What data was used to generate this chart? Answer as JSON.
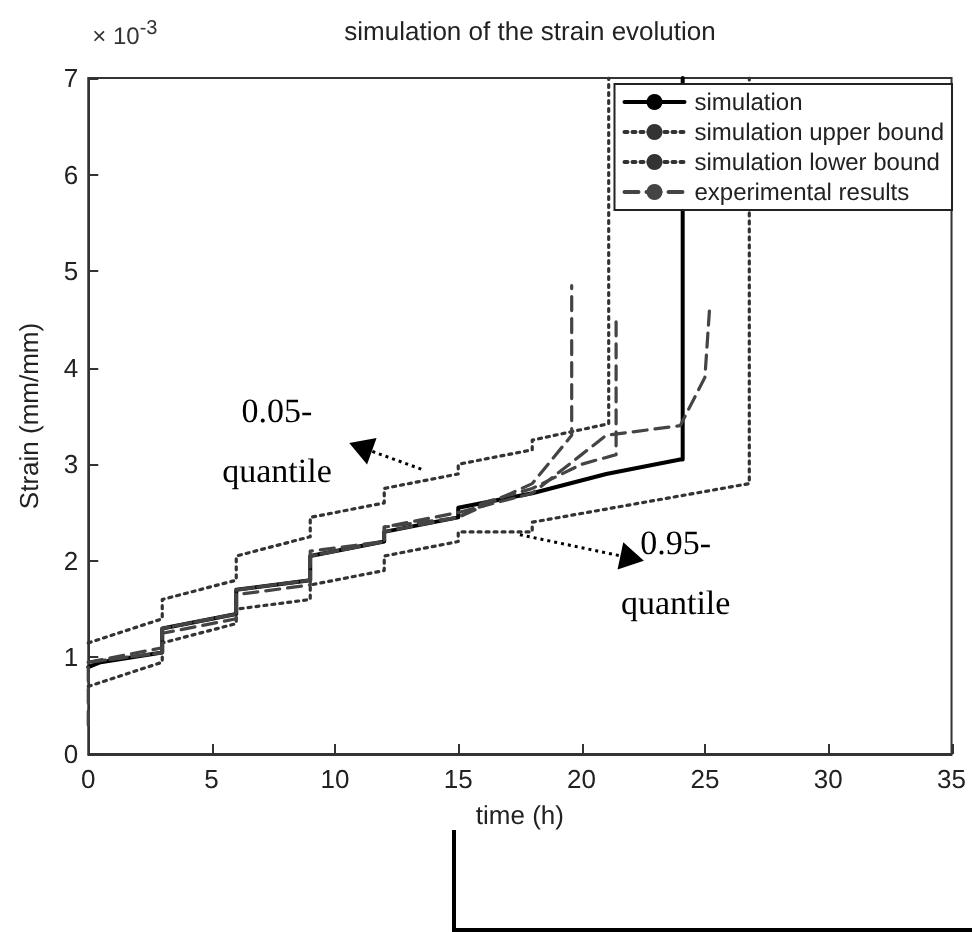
{
  "chart_data": {
    "type": "line",
    "title": "simulation of the strain evolution",
    "xlabel": "time (h)",
    "ylabel": "Strain (mm/mm)",
    "annotations": [
      "× 10$^{-3}$",
      {
        "text": "0.05-\nquantile",
        "x": 13.5,
        "y": 2.95
      },
      {
        "text": "0.95-\nquantile",
        "x": 17.5,
        "y": 2.27
      }
    ],
    "xlim": [
      0,
      35
    ],
    "ylim": [
      0,
      7
    ],
    "xticks": [
      0,
      5,
      10,
      15,
      20,
      25,
      30,
      35
    ],
    "yticks": [
      0,
      1,
      2,
      3,
      4,
      5,
      6,
      7
    ],
    "grid": false,
    "legend": "top right",
    "series": [
      {
        "name": "simulation",
        "color": "#000000",
        "line_style": "solid",
        "x": [
          0,
          0.5,
          3,
          3,
          6,
          6,
          9,
          9,
          12,
          12,
          15,
          15,
          18,
          21,
          24,
          24.1,
          24.1
        ],
        "values": [
          0.9,
          0.95,
          1.05,
          1.3,
          1.45,
          1.7,
          1.8,
          2.05,
          2.2,
          2.3,
          2.45,
          2.55,
          2.7,
          2.9,
          3.05,
          3.05,
          7
        ]
      },
      {
        "name": "simulation upper bound",
        "color": "#333333",
        "line_style": "dotted",
        "x": [
          0,
          3,
          3,
          6,
          6,
          9,
          9,
          12,
          12,
          15,
          15,
          18,
          18,
          21.1,
          21.1
        ],
        "values": [
          1.15,
          1.4,
          1.6,
          1.8,
          2.05,
          2.25,
          2.45,
          2.6,
          2.75,
          2.9,
          3.0,
          3.15,
          3.25,
          3.42,
          7
        ]
      },
      {
        "name": "simulation lower bound",
        "color": "#333333",
        "line_style": "dotted",
        "x": [
          0,
          3,
          3,
          6,
          6,
          9,
          9,
          12,
          12,
          15,
          15,
          18,
          18,
          26.8,
          26.8
        ],
        "values": [
          0.7,
          0.95,
          1.15,
          1.35,
          1.5,
          1.6,
          1.75,
          1.9,
          2.05,
          2.2,
          2.3,
          2.3,
          2.4,
          2.8,
          7
        ]
      },
      {
        "name": "experimental results",
        "color": "#444444",
        "line_style": "dashed",
        "x": [
          0,
          3,
          3,
          6,
          6,
          9,
          9,
          12,
          12,
          15,
          18,
          19.6,
          19.6
        ],
        "values": [
          0.95,
          1.05,
          1.3,
          1.45,
          1.7,
          1.8,
          2.05,
          2.2,
          2.3,
          2.45,
          2.8,
          3.3,
          4.85
        ]
      },
      {
        "color": "#444444",
        "line_style": "dashed",
        "x": [
          0,
          0,
          3,
          3,
          6,
          6,
          9,
          9,
          12,
          12,
          15,
          16,
          18,
          20,
          21.4,
          21.4
        ],
        "values": [
          0.3,
          0.95,
          1.05,
          1.25,
          1.4,
          1.65,
          1.75,
          2.05,
          2.2,
          2.35,
          2.45,
          2.6,
          2.75,
          3.0,
          3.1,
          4.55
        ]
      },
      {
        "color": "#444444",
        "line_style": "dashed",
        "x": [
          0,
          3,
          3,
          6,
          6,
          9,
          9,
          12,
          12,
          15,
          18,
          20,
          21,
          24,
          25,
          25.2
        ],
        "values": [
          0.95,
          1.1,
          1.3,
          1.45,
          1.7,
          1.8,
          2.1,
          2.2,
          2.35,
          2.5,
          2.7,
          3.1,
          3.3,
          3.4,
          3.9,
          4.65
        ]
      }
    ]
  }
}
